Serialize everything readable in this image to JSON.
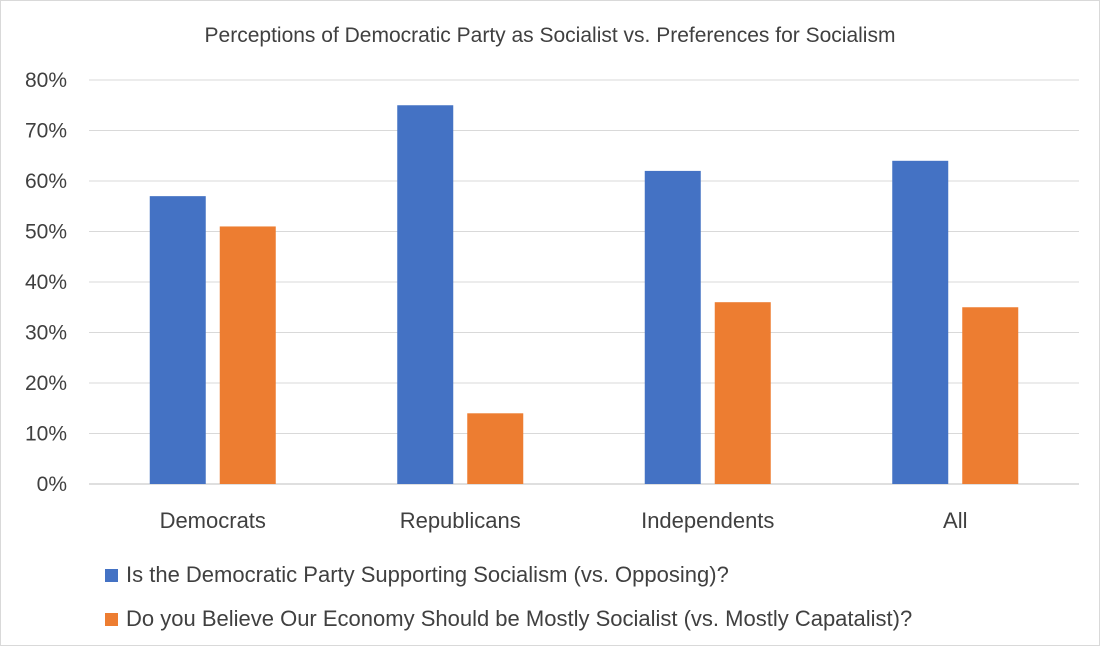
{
  "chart_data": {
    "type": "bar",
    "title": "Perceptions of Democratic Party as Socialist vs. Preferences for Socialism",
    "categories": [
      "Democrats",
      "Republicans",
      "Independents",
      "All"
    ],
    "series": [
      {
        "name": "Is the Democratic Party Supporting Socialism (vs. Opposing)?",
        "values": [
          57,
          75,
          62,
          64
        ],
        "color": "#4472c4"
      },
      {
        "name": "Do you Believe Our Economy Should be Mostly Socialist (vs. Mostly Capatalist)?",
        "values": [
          51,
          14,
          36,
          35
        ],
        "color": "#ed7d31"
      }
    ],
    "yticks": [
      "0%",
      "10%",
      "20%",
      "30%",
      "40%",
      "50%",
      "60%",
      "70%",
      "80%"
    ],
    "ylim": [
      0,
      80
    ],
    "xlabel": "",
    "ylabel": "",
    "grid": true,
    "legend_position": "bottom-left"
  }
}
